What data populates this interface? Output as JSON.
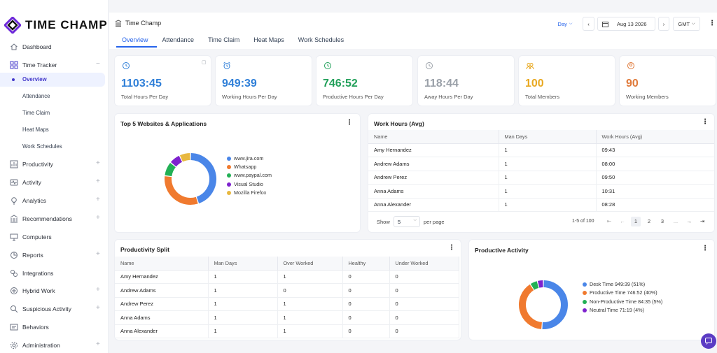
{
  "app": {
    "name": "TIME CHAMP",
    "breadcrumb": "Time Champ"
  },
  "colors": {
    "accent": "#2563eb",
    "brand": "#4f46e5",
    "blue": "#4a86e8",
    "green": "#22b055",
    "orange": "#f07a2f",
    "purple": "#7e22ce",
    "gray": "#9aa0a8",
    "amber": "#e8b020",
    "chat": "#5b3cc4"
  },
  "sidebar": {
    "items": [
      {
        "label": "Dashboard",
        "icon": "home-icon"
      },
      {
        "label": "Time Tracker",
        "icon": "grid-icon",
        "expanded": true
      },
      {
        "label": "Productivity",
        "icon": "chart-icon"
      },
      {
        "label": "Activity",
        "icon": "activity-icon"
      },
      {
        "label": "Analytics",
        "icon": "bulb-icon"
      },
      {
        "label": "Recommendations",
        "icon": "bank-icon"
      },
      {
        "label": "Computers",
        "icon": "monitor-icon"
      },
      {
        "label": "Reports",
        "icon": "pie-icon"
      },
      {
        "label": "Integrations",
        "icon": "integrations-icon"
      },
      {
        "label": "Hybrid Work",
        "icon": "hybrid-icon"
      },
      {
        "label": "Suspicious Activity",
        "icon": "suspicious-icon"
      },
      {
        "label": "Behaviors",
        "icon": "behaviors-icon"
      },
      {
        "label": "Administration",
        "icon": "gear-icon"
      }
    ],
    "subitems": [
      "Overview",
      "Attendance",
      "Time Claim",
      "Heat Maps",
      "Work Schedules"
    ]
  },
  "header": {
    "tabs": [
      "Overview",
      "Attendance",
      "Time Claim",
      "Heat Maps",
      "Work Schedules"
    ],
    "period": "Day",
    "date": "Aug 13 2026",
    "timezone": "GMT"
  },
  "stats": [
    {
      "value": "1103:45",
      "label": "Total Hours Per Day",
      "color": "#2f7fd8"
    },
    {
      "value": "949:39",
      "label": "Working Hours Per Day",
      "color": "#2f7fd8"
    },
    {
      "value": "746:52",
      "label": "Productive Hours Per Day",
      "color": "#22a05a"
    },
    {
      "value": "118:44",
      "label": "Away Hours Per Day",
      "color": "#9aa0a8"
    },
    {
      "value": "100",
      "label": "Total Members",
      "color": "#e8a820"
    },
    {
      "value": "90",
      "label": "Working Members",
      "color": "#e07a3a"
    }
  ],
  "top_websites": {
    "title": "Top 5 Websites & Applications",
    "legend": [
      "www.jira.com",
      "Whatsapp",
      "www.paypal.com",
      "Visual Studio",
      "Mozilla Firefox"
    ]
  },
  "work_hours": {
    "title": "Work Hours (Avg)",
    "columns": [
      "Name",
      "Man Days",
      "Work Hours (Avg)"
    ],
    "rows": [
      [
        "Amy Hernandez",
        "1",
        "09:43"
      ],
      [
        "Andrew Adams",
        "1",
        "08:00"
      ],
      [
        "Andrew Perez",
        "1",
        "09:50"
      ],
      [
        "Anna Adams",
        "1",
        "10:31"
      ],
      [
        "Anna Alexander",
        "1",
        "08:28"
      ]
    ],
    "show_label": "Show",
    "page_size": "5",
    "per_page_label": "per page",
    "range": "1-5 of 100",
    "pages": [
      "1",
      "2",
      "3",
      "..."
    ]
  },
  "productivity_split": {
    "title": "Productivity Split",
    "columns": [
      "Name",
      "Man Days",
      "Over Worked",
      "Healthy",
      "Under Worked"
    ],
    "rows": [
      [
        "Amy Hernandez",
        "1",
        "1",
        "0",
        "0"
      ],
      [
        "Andrew Adams",
        "1",
        "0",
        "0",
        "0"
      ],
      [
        "Andrew Perez",
        "1",
        "1",
        "0",
        "0"
      ],
      [
        "Anna Adams",
        "1",
        "1",
        "0",
        "0"
      ],
      [
        "Anna Alexander",
        "1",
        "1",
        "0",
        "0"
      ]
    ]
  },
  "productive_activity": {
    "title": "Productive Activity",
    "legend": [
      "Desk Time 949:39 (51%)",
      "Productive Time 746:52 (40%)",
      "Non-Productive Time 84:35 (5%)",
      "Neutral Time 71:19 (4%)"
    ]
  },
  "chart_data": [
    {
      "type": "pie",
      "categories": [
        "www.jira.com",
        "Whatsapp",
        "www.paypal.com",
        "Visual Studio",
        "Mozilla Firefox"
      ],
      "values": [
        45,
        32,
        9,
        7,
        7
      ],
      "colors": [
        "#4a86e8",
        "#f07a2f",
        "#22b055",
        "#7e22ce",
        "#e8b840"
      ],
      "legend": "right"
    },
    {
      "type": "pie",
      "categories": [
        "Desk Time",
        "Productive Time",
        "Non-Productive Time",
        "Neutral Time"
      ],
      "values": [
        51,
        40,
        5,
        4
      ],
      "colors": [
        "#4a86e8",
        "#f07a2f",
        "#22b055",
        "#7e22ce"
      ],
      "legend": "right"
    }
  ]
}
